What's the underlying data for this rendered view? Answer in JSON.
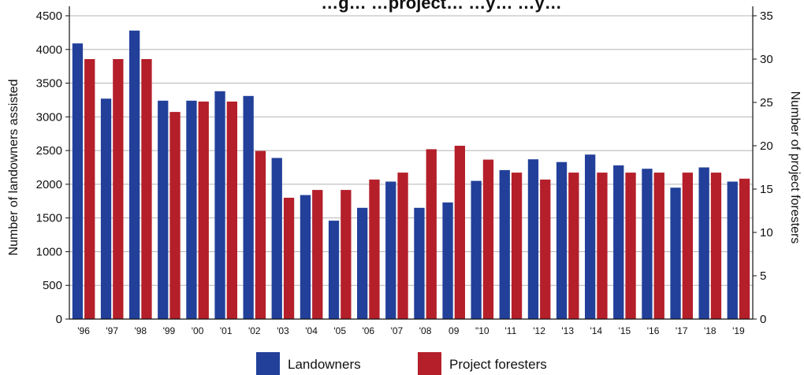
{
  "chart_data": {
    "type": "bar",
    "title": "…g… …project… …y… …y…",
    "ylabel": "Number of landowners assisted",
    "y2label": "Number of project foresters",
    "ylim": [
      0,
      4500
    ],
    "y2lim": [
      0,
      35
    ],
    "yticks": [
      "0",
      "500",
      "1000",
      "1500",
      "2000",
      "2500",
      "3000",
      "3500",
      "4000",
      "4500"
    ],
    "y2ticks": [
      "0",
      "5",
      "10",
      "15",
      "20",
      "25",
      "30",
      "35"
    ],
    "grid": true,
    "legend_position": "bottom",
    "categories": [
      "'96",
      "'97",
      "'98",
      "'99",
      "'00",
      "'01",
      "'02",
      "'03",
      "'04",
      "'05",
      "'06",
      "'07",
      "'08",
      "09",
      "\"10",
      "'11",
      "'12",
      "'13",
      "'14",
      "'15",
      "'16",
      "'17",
      "'18",
      "'19"
    ],
    "series": [
      {
        "name": "Landowners",
        "axis": "left",
        "color": "#22409a",
        "values": [
          4090,
          3270,
          4280,
          3240,
          3240,
          3380,
          3310,
          2390,
          1840,
          1460,
          1650,
          2040,
          1650,
          1730,
          2050,
          2210,
          2370,
          2330,
          2440,
          2280,
          2230,
          1950,
          2250,
          2040
        ]
      },
      {
        "name": "Project foresters",
        "axis": "right",
        "color": "#b41f2a",
        "values": [
          30,
          30,
          30,
          23.9,
          25.1,
          25.1,
          19.4,
          14,
          14.9,
          14.9,
          16.1,
          16.9,
          19.6,
          20,
          18.4,
          16.9,
          16.1,
          16.9,
          16.9,
          16.9,
          16.9,
          16.9,
          16.9,
          16.2
        ]
      }
    ]
  }
}
